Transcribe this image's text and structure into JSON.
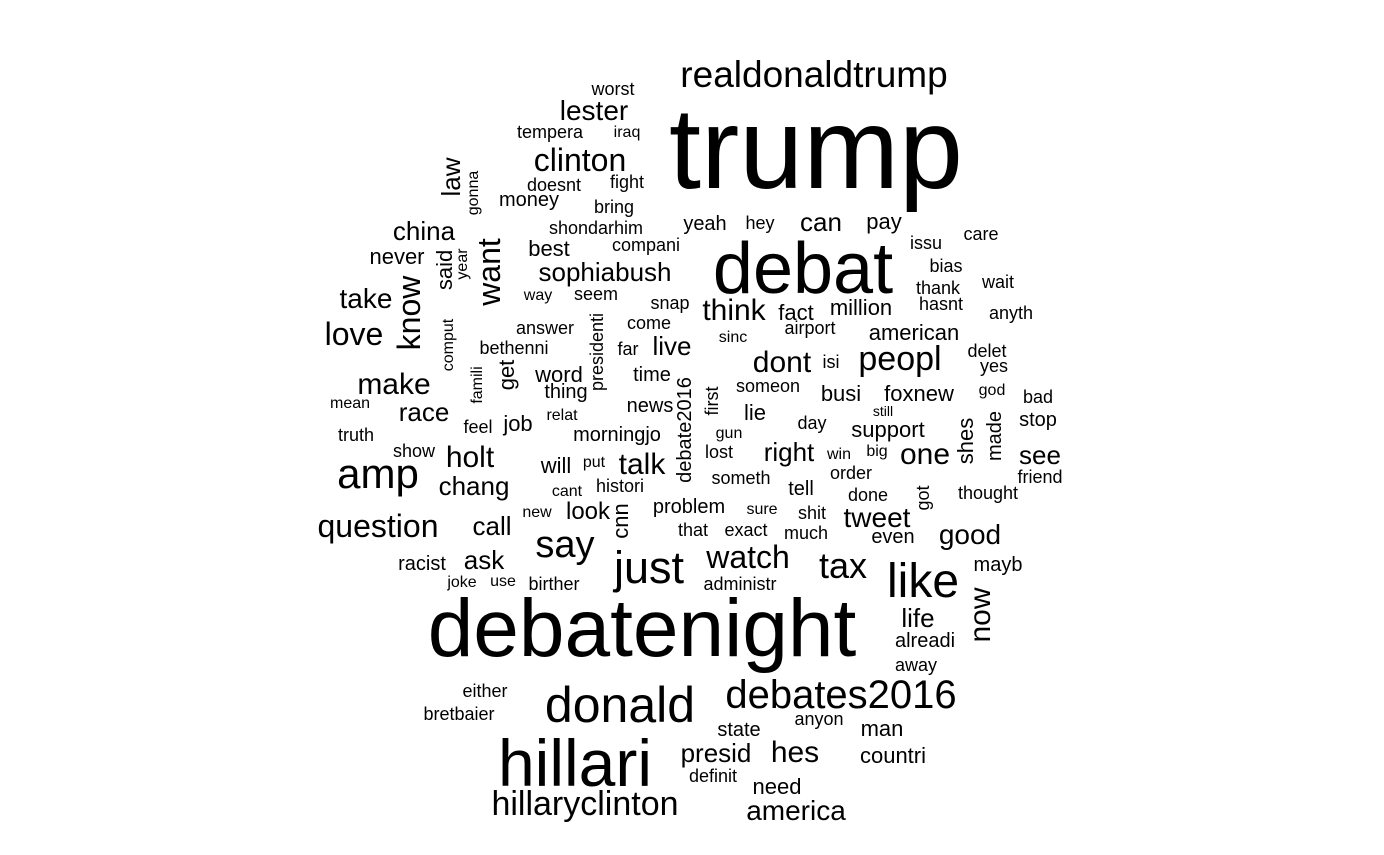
{
  "words": [
    {
      "text": "trump"
    },
    {
      "text": "debatenight"
    },
    {
      "text": "debat"
    },
    {
      "text": "hillari"
    },
    {
      "text": "donald"
    },
    {
      "text": "realdonaldtrump"
    },
    {
      "text": "debates2016"
    },
    {
      "text": "like"
    },
    {
      "text": "just"
    },
    {
      "text": "amp"
    },
    {
      "text": "hillaryclinton"
    },
    {
      "text": "say"
    },
    {
      "text": "tax"
    },
    {
      "text": "watch"
    },
    {
      "text": "clinton"
    },
    {
      "text": "peopl"
    },
    {
      "text": "question"
    },
    {
      "text": "america"
    },
    {
      "text": "tweet"
    },
    {
      "text": "good"
    },
    {
      "text": "talk"
    },
    {
      "text": "think"
    },
    {
      "text": "dont"
    },
    {
      "text": "hes"
    },
    {
      "text": "presid"
    },
    {
      "text": "lester"
    },
    {
      "text": "know"
    },
    {
      "text": "want"
    },
    {
      "text": "sophiabush"
    },
    {
      "text": "love"
    },
    {
      "text": "make"
    },
    {
      "text": "holt"
    },
    {
      "text": "now"
    },
    {
      "text": "one"
    },
    {
      "text": "take"
    },
    {
      "text": "china"
    },
    {
      "text": "race"
    },
    {
      "text": "chang"
    },
    {
      "text": "call"
    },
    {
      "text": "ask"
    },
    {
      "text": "can"
    },
    {
      "text": "live"
    },
    {
      "text": "right"
    },
    {
      "text": "life"
    },
    {
      "text": "see"
    },
    {
      "text": "law"
    },
    {
      "text": "never"
    },
    {
      "text": "said"
    },
    {
      "text": "get"
    },
    {
      "text": "job"
    },
    {
      "text": "look"
    },
    {
      "text": "will"
    },
    {
      "text": "word"
    },
    {
      "text": "support"
    },
    {
      "text": "foxnew"
    },
    {
      "text": "american"
    },
    {
      "text": "million"
    },
    {
      "text": "fact"
    },
    {
      "text": "busi"
    },
    {
      "text": "cnn"
    },
    {
      "text": "money"
    },
    {
      "text": "best"
    },
    {
      "text": "yeah"
    },
    {
      "text": "pay"
    },
    {
      "text": "man"
    },
    {
      "text": "need"
    },
    {
      "text": "countri"
    },
    {
      "text": "alreadi"
    },
    {
      "text": "shes"
    },
    {
      "text": "made"
    },
    {
      "text": "stop"
    },
    {
      "text": "morningjo"
    },
    {
      "text": "news"
    },
    {
      "text": "time"
    },
    {
      "text": "thing"
    },
    {
      "text": "racist"
    },
    {
      "text": "state"
    },
    {
      "text": "worst"
    },
    {
      "text": "tempera"
    },
    {
      "text": "iraq"
    },
    {
      "text": "doesnt"
    },
    {
      "text": "fight"
    },
    {
      "text": "bring"
    },
    {
      "text": "gonna"
    },
    {
      "text": "shondarhim"
    },
    {
      "text": "hey"
    },
    {
      "text": "compani"
    },
    {
      "text": "issu"
    },
    {
      "text": "care"
    },
    {
      "text": "bias"
    },
    {
      "text": "wait"
    },
    {
      "text": "thank"
    },
    {
      "text": "hasnt"
    },
    {
      "text": "anyth"
    },
    {
      "text": "year"
    },
    {
      "text": "seem"
    },
    {
      "text": "snap"
    },
    {
      "text": "way"
    },
    {
      "text": "answer"
    },
    {
      "text": "presidenti"
    },
    {
      "text": "come"
    },
    {
      "text": "sinc"
    },
    {
      "text": "airport"
    },
    {
      "text": "comput"
    },
    {
      "text": "bethenni"
    },
    {
      "text": "far"
    },
    {
      "text": "delet"
    },
    {
      "text": "yes"
    },
    {
      "text": "isi"
    },
    {
      "text": "famili"
    },
    {
      "text": "first"
    },
    {
      "text": "debate2016"
    },
    {
      "text": "someon"
    },
    {
      "text": "god"
    },
    {
      "text": "bad"
    },
    {
      "text": "mean"
    },
    {
      "text": "relat"
    },
    {
      "text": "lie"
    },
    {
      "text": "still"
    },
    {
      "text": "truth"
    },
    {
      "text": "feel"
    },
    {
      "text": "gun"
    },
    {
      "text": "day"
    },
    {
      "text": "show"
    },
    {
      "text": "lost"
    },
    {
      "text": "win"
    },
    {
      "text": "big"
    },
    {
      "text": "put"
    },
    {
      "text": "friend"
    },
    {
      "text": "someth"
    },
    {
      "text": "order"
    },
    {
      "text": "cant"
    },
    {
      "text": "histori"
    },
    {
      "text": "thought"
    },
    {
      "text": "done"
    },
    {
      "text": "got"
    },
    {
      "text": "new"
    },
    {
      "text": "problem"
    },
    {
      "text": "sure"
    },
    {
      "text": "shit"
    },
    {
      "text": "that"
    },
    {
      "text": "exact"
    },
    {
      "text": "much"
    },
    {
      "text": "even"
    },
    {
      "text": "joke"
    },
    {
      "text": "use"
    },
    {
      "text": "birther"
    },
    {
      "text": "administr"
    },
    {
      "text": "mayb"
    },
    {
      "text": "away"
    },
    {
      "text": "either"
    },
    {
      "text": "bretbaier"
    },
    {
      "text": "anyon"
    },
    {
      "text": "definit"
    },
    {
      "text": "tell"
    }
  ]
}
